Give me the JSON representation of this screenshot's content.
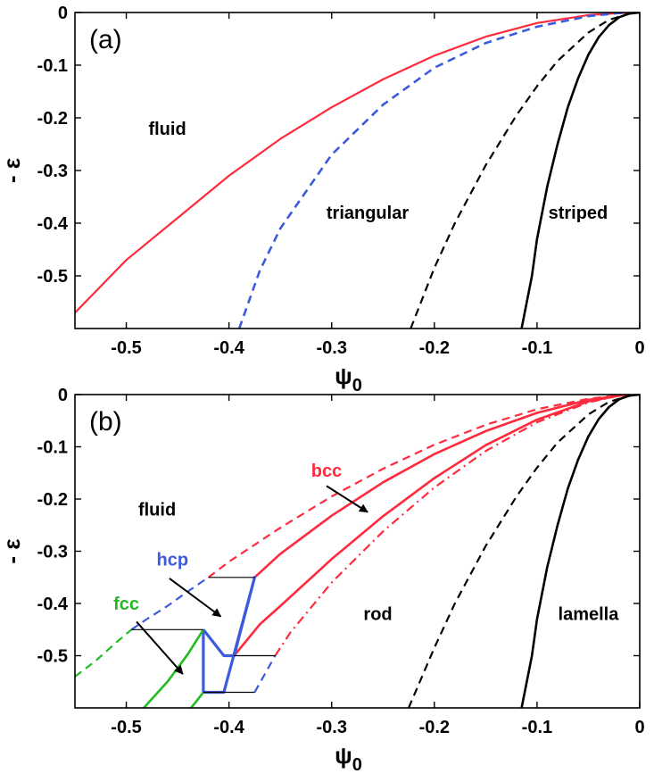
{
  "chart_data": [
    {
      "type": "line",
      "panel_label": "(a)",
      "xlabel": "ψ",
      "xlabel_sub": "0",
      "ylabel": "- ε",
      "xlim": [
        -0.55,
        0
      ],
      "ylim": [
        -0.6,
        0
      ],
      "xticks": [
        -0.5,
        -0.4,
        -0.3,
        -0.2,
        -0.1,
        0
      ],
      "xtick_labels": [
        "-0.5",
        "-0.4",
        "-0.3",
        "-0.2",
        "-0.1",
        "0"
      ],
      "yticks": [
        0,
        -0.1,
        -0.2,
        -0.3,
        -0.4,
        -0.5
      ],
      "ytick_labels": [
        "0",
        "-0.1",
        "-0.2",
        "-0.3",
        "-0.4",
        "-0.5"
      ],
      "series": [
        {
          "name": "fluid-triangular",
          "color": "#ff2a3c",
          "dash": "solid",
          "width": 2.2,
          "x": [
            -0.55,
            -0.5,
            -0.45,
            -0.4,
            -0.35,
            -0.3,
            -0.25,
            -0.2,
            -0.15,
            -0.1,
            -0.05,
            -0.02,
            0
          ],
          "y": [
            -0.57,
            -0.47,
            -0.39,
            -0.31,
            -0.24,
            -0.18,
            -0.127,
            -0.082,
            -0.046,
            -0.02,
            -0.005,
            -0.001,
            0
          ]
        },
        {
          "name": "triangular-spinodal",
          "color": "#3c5adc",
          "dash": "dashed",
          "width": 2.6,
          "x": [
            -0.39,
            -0.37,
            -0.35,
            -0.3,
            -0.25,
            -0.2,
            -0.15,
            -0.1,
            -0.05,
            -0.02,
            0
          ],
          "y": [
            -0.6,
            -0.49,
            -0.41,
            -0.27,
            -0.175,
            -0.105,
            -0.058,
            -0.027,
            -0.007,
            -0.001,
            0
          ]
        },
        {
          "name": "triangular-striped-dashed",
          "color": "#000000",
          "dash": "dashed",
          "width": 2.2,
          "x": [
            -0.223,
            -0.2,
            -0.18,
            -0.15,
            -0.12,
            -0.1,
            -0.08,
            -0.05,
            -0.03,
            -0.01,
            0
          ],
          "y": [
            -0.6,
            -0.485,
            -0.4,
            -0.29,
            -0.195,
            -0.14,
            -0.092,
            -0.038,
            -0.014,
            -0.002,
            0
          ]
        },
        {
          "name": "triangular-striped",
          "color": "#000000",
          "dash": "solid",
          "width": 2.6,
          "x": [
            -0.115,
            -0.105,
            -0.1,
            -0.09,
            -0.08,
            -0.07,
            -0.06,
            -0.05,
            -0.04,
            -0.03,
            -0.02,
            -0.01,
            0
          ],
          "y": [
            -0.6,
            -0.5,
            -0.43,
            -0.33,
            -0.25,
            -0.18,
            -0.125,
            -0.08,
            -0.047,
            -0.024,
            -0.009,
            -0.002,
            0
          ]
        }
      ],
      "annotations": [
        {
          "text": "fluid",
          "x": -0.46,
          "y": -0.22,
          "color": "#000000"
        },
        {
          "text": "triangular",
          "x": -0.265,
          "y": -0.38,
          "color": "#000000"
        },
        {
          "text": "striped",
          "x": -0.06,
          "y": -0.38,
          "color": "#000000"
        }
      ]
    },
    {
      "type": "line",
      "panel_label": "(b)",
      "xlabel": "ψ",
      "xlabel_sub": "0",
      "ylabel": "- ε",
      "xlim": [
        -0.55,
        0
      ],
      "ylim": [
        -0.6,
        0
      ],
      "xticks": [
        -0.5,
        -0.4,
        -0.3,
        -0.2,
        -0.1,
        0
      ],
      "xtick_labels": [
        "-0.5",
        "-0.4",
        "-0.3",
        "-0.2",
        "-0.1",
        "0"
      ],
      "yticks": [
        0,
        -0.1,
        -0.2,
        -0.3,
        -0.4,
        -0.5
      ],
      "ytick_labels": [
        "0",
        "-0.1",
        "-0.2",
        "-0.3",
        "-0.4",
        "-0.5"
      ],
      "series": [
        {
          "name": "fluid-bcc-dashed",
          "color": "#ff2a3c",
          "dash": "dashed",
          "width": 2.2,
          "x": [
            -0.42,
            -0.4,
            -0.35,
            -0.3,
            -0.25,
            -0.2,
            -0.15,
            -0.1,
            -0.05,
            -0.02,
            0
          ],
          "y": [
            -0.35,
            -0.32,
            -0.255,
            -0.195,
            -0.142,
            -0.096,
            -0.058,
            -0.028,
            -0.008,
            -0.001,
            0
          ]
        },
        {
          "name": "fluid-hcp-dashed",
          "color": "#3c5adc",
          "dash": "dashed",
          "width": 2.2,
          "x": [
            -0.495,
            -0.48,
            -0.46,
            -0.44,
            -0.42
          ],
          "y": [
            -0.45,
            -0.43,
            -0.405,
            -0.377,
            -0.35
          ]
        },
        {
          "name": "fluid-fcc-dashed",
          "color": "#22bb22",
          "dash": "dashed",
          "width": 2.2,
          "x": [
            -0.55,
            -0.53,
            -0.51,
            -0.495
          ],
          "y": [
            -0.54,
            -0.51,
            -0.475,
            -0.45
          ]
        },
        {
          "name": "bcc-fluid-solid",
          "color": "#ff2a3c",
          "dash": "solid",
          "width": 2.6,
          "x": [
            -0.375,
            -0.35,
            -0.3,
            -0.25,
            -0.2,
            -0.15,
            -0.1,
            -0.05,
            -0.02,
            0
          ],
          "y": [
            -0.35,
            -0.305,
            -0.232,
            -0.168,
            -0.114,
            -0.07,
            -0.035,
            -0.01,
            -0.002,
            0
          ]
        },
        {
          "name": "bcc-rod-solid",
          "color": "#ff2a3c",
          "dash": "solid",
          "width": 2.6,
          "x": [
            -0.395,
            -0.37,
            -0.35,
            -0.3,
            -0.25,
            -0.2,
            -0.15,
            -0.1,
            -0.05,
            -0.02,
            0
          ],
          "y": [
            -0.5,
            -0.44,
            -0.405,
            -0.315,
            -0.233,
            -0.16,
            -0.097,
            -0.048,
            -0.013,
            -0.002,
            0
          ]
        },
        {
          "name": "bcc-rod-dashdot",
          "color": "#ff2a3c",
          "dash": "dashdot",
          "width": 2.2,
          "x": [
            -0.355,
            -0.34,
            -0.3,
            -0.25,
            -0.2,
            -0.15,
            -0.1,
            -0.05,
            -0.02,
            0
          ],
          "y": [
            -0.5,
            -0.455,
            -0.36,
            -0.262,
            -0.178,
            -0.108,
            -0.053,
            -0.015,
            -0.002,
            0
          ]
        },
        {
          "name": "hcp-rod-dashed",
          "color": "#3c5adc",
          "dash": "dashed",
          "width": 2.2,
          "x": [
            -0.375,
            -0.365,
            -0.355
          ],
          "y": [
            -0.57,
            -0.535,
            -0.5
          ]
        },
        {
          "name": "rod-lamella-dashed",
          "color": "#000000",
          "dash": "dashed",
          "width": 2.2,
          "x": [
            -0.225,
            -0.2,
            -0.18,
            -0.15,
            -0.12,
            -0.1,
            -0.08,
            -0.05,
            -0.03,
            -0.01,
            0
          ],
          "y": [
            -0.6,
            -0.485,
            -0.4,
            -0.29,
            -0.195,
            -0.14,
            -0.092,
            -0.038,
            -0.014,
            -0.002,
            0
          ]
        },
        {
          "name": "rod-lamella",
          "color": "#000000",
          "dash": "solid",
          "width": 2.6,
          "x": [
            -0.115,
            -0.105,
            -0.1,
            -0.09,
            -0.08,
            -0.07,
            -0.06,
            -0.05,
            -0.04,
            -0.03,
            -0.02,
            -0.01,
            0
          ],
          "y": [
            -0.6,
            -0.5,
            -0.43,
            -0.33,
            -0.25,
            -0.18,
            -0.125,
            -0.08,
            -0.047,
            -0.024,
            -0.009,
            -0.002,
            0
          ]
        },
        {
          "name": "hcp-region",
          "color": "#3c5adc",
          "dash": "solid",
          "width": 3.2,
          "x": [
            -0.425,
            -0.425,
            -0.405,
            -0.375,
            -0.395,
            -0.405,
            -0.425
          ],
          "y": [
            -0.45,
            -0.57,
            -0.57,
            -0.35,
            -0.5,
            -0.5,
            -0.45
          ]
        },
        {
          "name": "fcc-hcp-left",
          "color": "#22bb22",
          "dash": "solid",
          "width": 2.6,
          "x": [
            -0.483,
            -0.46,
            -0.44,
            -0.425
          ],
          "y": [
            -0.6,
            -0.55,
            -0.497,
            -0.45
          ]
        },
        {
          "name": "fcc-hcp-right",
          "color": "#22bb22",
          "dash": "solid",
          "width": 2.6,
          "x": [
            -0.437,
            -0.43,
            -0.425
          ],
          "y": [
            -0.6,
            -0.583,
            -0.57
          ]
        },
        {
          "name": "tie-line-1",
          "color": "#000000",
          "dash": "solid",
          "width": 1.2,
          "x": [
            -0.42,
            -0.375
          ],
          "y": [
            -0.35,
            -0.35
          ]
        },
        {
          "name": "tie-line-2",
          "color": "#000000",
          "dash": "solid",
          "width": 1.2,
          "x": [
            -0.495,
            -0.425
          ],
          "y": [
            -0.45,
            -0.45
          ]
        },
        {
          "name": "tie-line-3",
          "color": "#000000",
          "dash": "solid",
          "width": 1.2,
          "x": [
            -0.395,
            -0.355
          ],
          "y": [
            -0.5,
            -0.5
          ]
        },
        {
          "name": "tie-line-4",
          "color": "#000000",
          "dash": "solid",
          "width": 1.2,
          "x": [
            -0.425,
            -0.375
          ],
          "y": [
            -0.57,
            -0.57
          ]
        }
      ],
      "arrows": [
        {
          "name": "bcc-arrow",
          "x1": -0.305,
          "y1": -0.175,
          "x2": -0.265,
          "y2": -0.225
        },
        {
          "name": "hcp-arrow",
          "x1": -0.458,
          "y1": -0.352,
          "x2": -0.408,
          "y2": -0.425
        },
        {
          "name": "fcc-arrow",
          "x1": -0.49,
          "y1": -0.435,
          "x2": -0.445,
          "y2": -0.535
        }
      ],
      "annotations": [
        {
          "text": "fluid",
          "x": -0.47,
          "y": -0.22,
          "color": "#000000"
        },
        {
          "text": "bcc",
          "x": -0.305,
          "y": -0.145,
          "color": "#ff2a3c"
        },
        {
          "text": "hcp",
          "x": -0.455,
          "y": -0.315,
          "color": "#3c5adc"
        },
        {
          "text": "fcc",
          "x": -0.5,
          "y": -0.4,
          "color": "#22bb22"
        },
        {
          "text": "rod",
          "x": -0.255,
          "y": -0.42,
          "color": "#000000"
        },
        {
          "text": "lamella",
          "x": -0.05,
          "y": -0.42,
          "color": "#000000"
        }
      ]
    }
  ]
}
